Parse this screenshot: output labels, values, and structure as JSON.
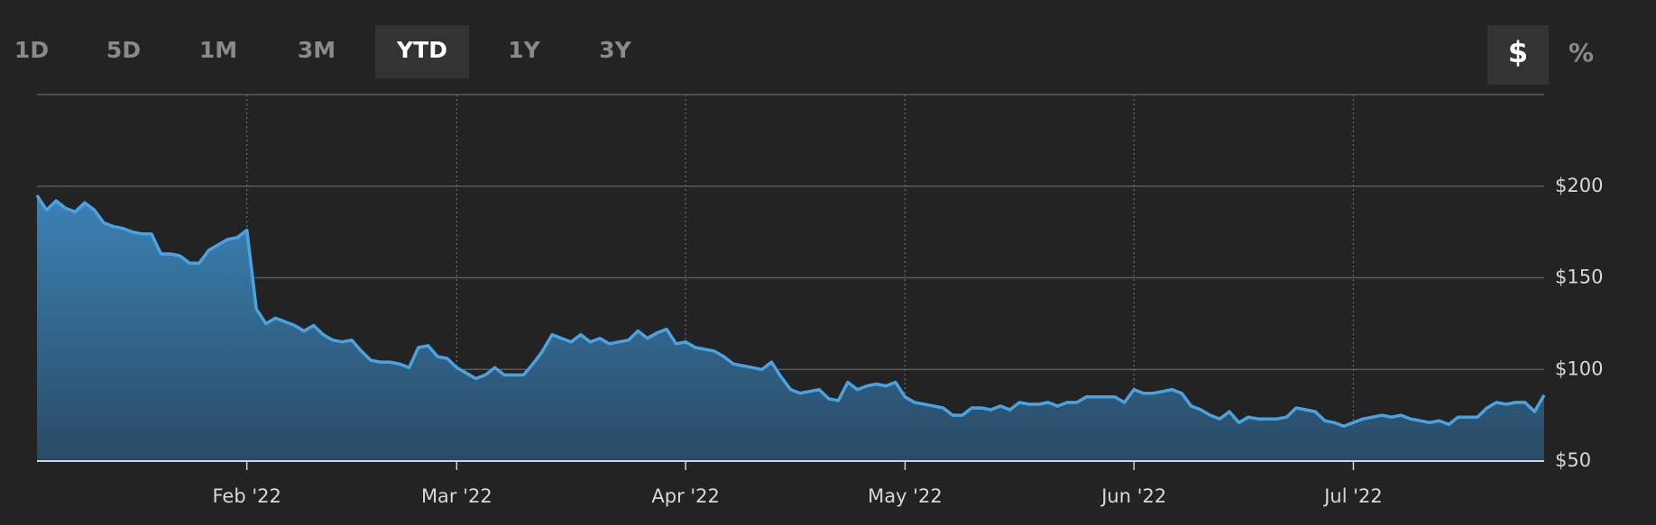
{
  "toolbar": {
    "ranges": [
      "1D",
      "5D",
      "1M",
      "3M",
      "YTD",
      "1Y",
      "3Y"
    ],
    "selected_range": 4,
    "units": [
      "$",
      "%"
    ],
    "selected_unit": 0
  },
  "chart_data": {
    "type": "area",
    "color": "#4aa3e0",
    "grid": true,
    "categories": [
      null,
      null,
      null,
      null,
      null,
      null,
      null,
      null,
      null,
      null,
      null,
      null,
      null,
      null,
      null,
      null,
      null,
      null,
      null,
      null,
      null,
      null,
      "Feb '22",
      null,
      null,
      null,
      null,
      null,
      null,
      null,
      null,
      null,
      null,
      null,
      null,
      null,
      null,
      null,
      null,
      null,
      null,
      null,
      null,
      null,
      "Mar '22",
      null,
      null,
      null,
      null,
      null,
      null,
      null,
      null,
      null,
      null,
      null,
      null,
      null,
      null,
      null,
      null,
      null,
      null,
      null,
      null,
      null,
      null,
      null,
      "Apr '22",
      null,
      null,
      null,
      null,
      null,
      null,
      null,
      null,
      null,
      null,
      null,
      null,
      null,
      null,
      null,
      null,
      null,
      null,
      null,
      null,
      null,
      null,
      "May '22",
      null,
      null,
      null,
      null,
      null,
      null,
      null,
      null,
      null,
      null,
      null,
      null,
      null,
      null,
      null,
      null,
      null,
      null,
      null,
      null,
      null,
      null,
      null,
      "Jun '22",
      null,
      null,
      null,
      null,
      null,
      null,
      null,
      null,
      null,
      null,
      null,
      null,
      null,
      null,
      null,
      null,
      null,
      null,
      null,
      null,
      null,
      null,
      "Jul '22",
      null,
      null,
      null,
      null,
      null,
      null,
      null,
      null,
      null,
      null,
      null,
      null,
      null,
      null,
      null,
      null,
      null,
      null,
      null,
      null
    ],
    "values": [
      195,
      187,
      192,
      188,
      186,
      191,
      187,
      180,
      178,
      177,
      175,
      174,
      174,
      163,
      163,
      162,
      158,
      158,
      165,
      168,
      171,
      172,
      176,
      133,
      125,
      128,
      126,
      124,
      121,
      124,
      119,
      116,
      115,
      116,
      110,
      105,
      104,
      104,
      103,
      101,
      112,
      113,
      107,
      106,
      101,
      98,
      95,
      97,
      101,
      97,
      97,
      97,
      103,
      110,
      119,
      117,
      115,
      119,
      115,
      117,
      114,
      115,
      116,
      121,
      117,
      120,
      122,
      114,
      115,
      112,
      111,
      110,
      107,
      103,
      102,
      101,
      100,
      104,
      96,
      89,
      87,
      88,
      89,
      84,
      83,
      93,
      89,
      91,
      92,
      91,
      93,
      85,
      82,
      81,
      80,
      79,
      75,
      75,
      79,
      79,
      78,
      80,
      78,
      82,
      81,
      81,
      82,
      80,
      82,
      82,
      85,
      85,
      85,
      85,
      82,
      89,
      87,
      87,
      88,
      89,
      87,
      80,
      78,
      75,
      73,
      77,
      71,
      74,
      73,
      73,
      73,
      74,
      79,
      78,
      77,
      72,
      71,
      69,
      71,
      73,
      74,
      75,
      74,
      75,
      73,
      72,
      71,
      72,
      70,
      74,
      74,
      74,
      79,
      82,
      81,
      82,
      82,
      77,
      86
    ],
    "ylim": [
      50,
      250
    ],
    "yticks": [
      {
        "value": 50,
        "label": "$50"
      },
      {
        "value": 100,
        "label": "$100"
      },
      {
        "value": 150,
        "label": "$150"
      },
      {
        "value": 200,
        "label": "$200"
      }
    ]
  }
}
